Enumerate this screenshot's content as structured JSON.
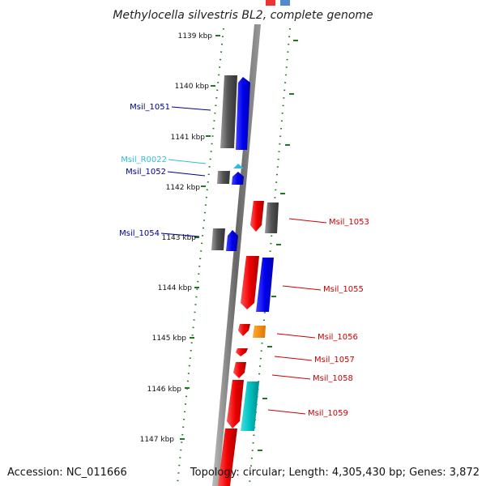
{
  "title": "Methylocella silvestris BL2, complete genome",
  "footer": {
    "accession": "Accession: NC_011666",
    "info": "Topology: circular; Length: 4,305,430 bp; Genes: 3,872"
  },
  "axis_ticks": [
    "1139 kbp",
    "1140 kbp",
    "1141 kbp",
    "1142 kbp",
    "1143 kbp",
    "1144 kbp",
    "1145 kbp",
    "1146 kbp",
    "1147 kbp"
  ],
  "left_labels": [
    {
      "name": "Msil_1051",
      "color": "#00008b"
    },
    {
      "name": "Msil_R0022",
      "color": "#33bbdd"
    },
    {
      "name": "Msil_1052",
      "color": "#00008b"
    },
    {
      "name": "Msil_1054",
      "color": "#00008b"
    }
  ],
  "right_labels": [
    {
      "name": "Msil_1053",
      "color": "#cc0000"
    },
    {
      "name": "Msil_1055",
      "color": "#cc0000"
    },
    {
      "name": "Msil_1056",
      "color": "#cc0000"
    },
    {
      "name": "Msil_1057",
      "color": "#cc0000"
    },
    {
      "name": "Msil_1058",
      "color": "#cc0000"
    },
    {
      "name": "Msil_1059",
      "color": "#cc0000"
    }
  ],
  "colors": {
    "forward_cds": "#0000ee",
    "reverse_cds": "#ee0000",
    "gene": "#666666",
    "rna": "#33bbdd",
    "cyan_feature": "#00c8c8",
    "orange_feature": "#ff8800",
    "tick_green": "#227722"
  }
}
